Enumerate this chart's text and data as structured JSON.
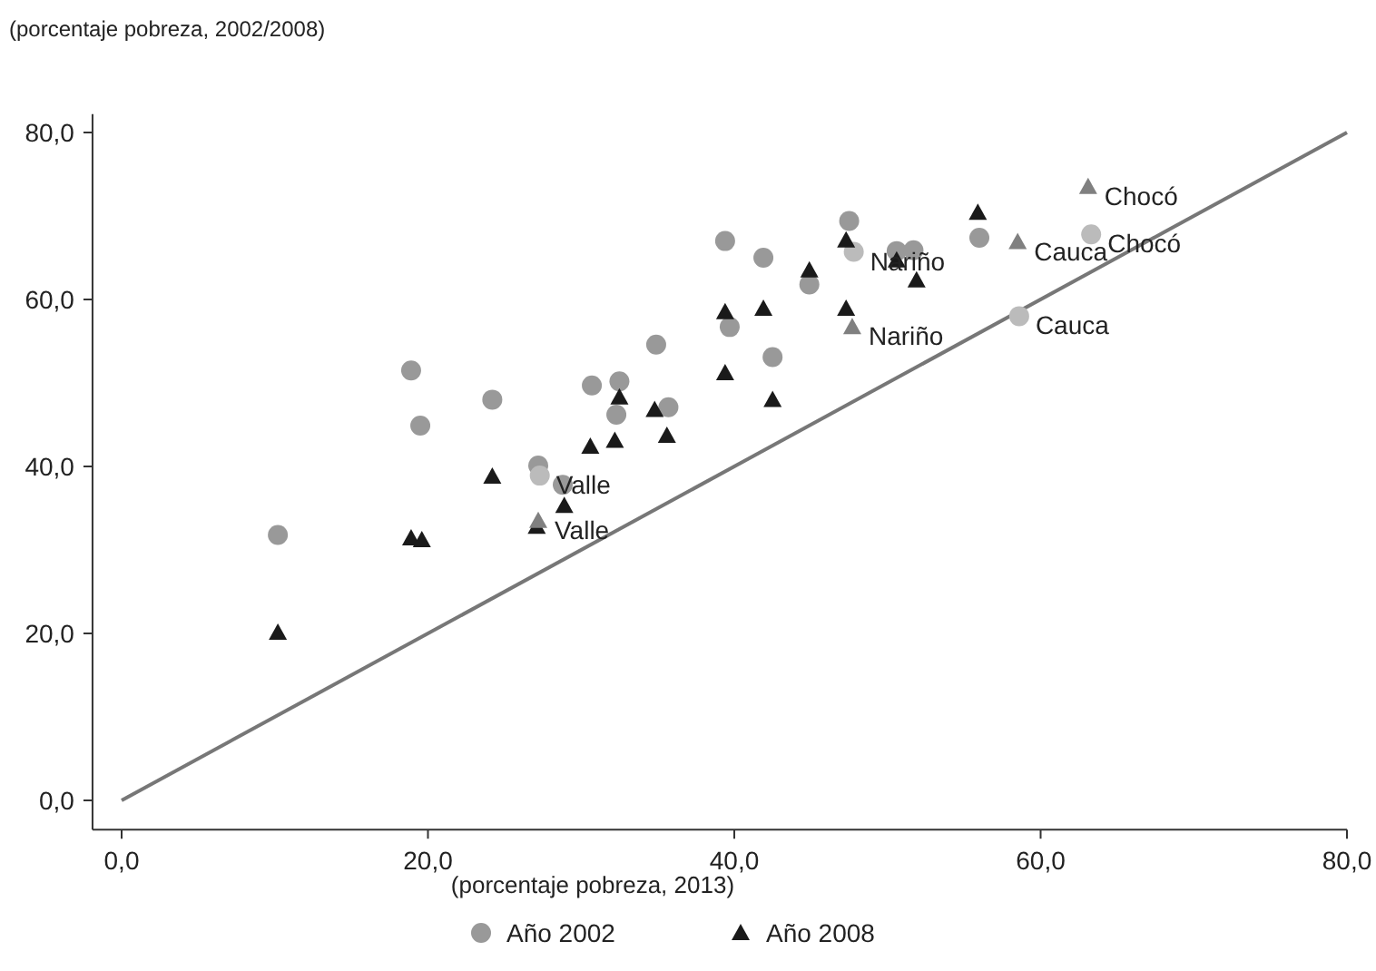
{
  "chart_data": {
    "type": "scatter",
    "ylabel": "(porcentaje pobreza, 2002/2008)",
    "xlabel": "(porcentaje pobreza, 2013)",
    "xlim": [
      -1.9,
      80
    ],
    "ylim": [
      -3.5,
      82.2
    ],
    "xticks": [
      {
        "value": 0,
        "label": "0,0"
      },
      {
        "value": 20,
        "label": "20,0"
      },
      {
        "value": 40,
        "label": "40,0"
      },
      {
        "value": 60,
        "label": "60,0"
      },
      {
        "value": 80,
        "label": "80,0"
      }
    ],
    "yticks": [
      {
        "value": 0,
        "label": "0,0"
      },
      {
        "value": 20,
        "label": "20,0"
      },
      {
        "value": 40,
        "label": "40,0"
      },
      {
        "value": 60,
        "label": "60,0"
      },
      {
        "value": 80,
        "label": "80,0"
      }
    ],
    "grid": false,
    "legend": "bottom",
    "series": [
      {
        "type": "line",
        "color": "#777777",
        "x": [
          0,
          80
        ],
        "values": [
          0,
          80
        ],
        "marker": "none",
        "line_style": "solid"
      },
      {
        "name": "Año 2002",
        "marker": "circle",
        "color": "#999999",
        "x": [
          10.2,
          18.9,
          19.5,
          24.2,
          27.2,
          27.3,
          28.8,
          30.7,
          32.5,
          32.3,
          34.9,
          35.7,
          39.4,
          39.7,
          41.9,
          42.5,
          44.9,
          47.5,
          47.8,
          50.6,
          51.7,
          56.0,
          58.6,
          63.3
        ],
        "values": [
          31.8,
          51.5,
          44.9,
          48.0,
          40.1,
          38.9,
          37.8,
          49.7,
          50.2,
          46.2,
          54.6,
          47.1,
          67.0,
          56.7,
          65.0,
          53.1,
          61.8,
          69.4,
          65.7,
          65.8,
          65.9,
          67.4,
          58.0,
          67.8
        ],
        "colors": [
          "#999999",
          "#999999",
          "#999999",
          "#999999",
          "#999999",
          "#bbbbbb",
          "#999999",
          "#999999",
          "#999999",
          "#999999",
          "#999999",
          "#999999",
          "#999999",
          "#999999",
          "#999999",
          "#999999",
          "#999999",
          "#999999",
          "#bbbbbb",
          "#999999",
          "#999999",
          "#999999",
          "#bbbbbb",
          "#bbbbbb"
        ]
      },
      {
        "name": "Año 2008",
        "marker": "triangle",
        "color": "#1a1a1a",
        "x": [
          10.2,
          18.9,
          19.6,
          24.2,
          27.1,
          27.2,
          28.9,
          30.6,
          32.2,
          32.5,
          34.8,
          35.6,
          39.4,
          39.4,
          41.9,
          42.5,
          44.9,
          47.3,
          47.3,
          47.7,
          50.6,
          51.9,
          55.9,
          58.5,
          63.1
        ],
        "values": [
          20.1,
          31.4,
          31.2,
          38.8,
          32.8,
          33.5,
          35.3,
          42.4,
          43.1,
          48.3,
          46.8,
          43.7,
          51.2,
          58.5,
          58.9,
          48.0,
          63.5,
          67.1,
          58.9,
          56.7,
          64.7,
          62.3,
          70.4,
          66.9,
          73.5
        ],
        "colors": [
          "#1a1a1a",
          "#1a1a1a",
          "#1a1a1a",
          "#1a1a1a",
          "#1a1a1a",
          "#808080",
          "#1a1a1a",
          "#1a1a1a",
          "#1a1a1a",
          "#1a1a1a",
          "#1a1a1a",
          "#1a1a1a",
          "#1a1a1a",
          "#1a1a1a",
          "#1a1a1a",
          "#1a1a1a",
          "#1a1a1a",
          "#1a1a1a",
          "#1a1a1a",
          "#808080",
          "#1a1a1a",
          "#1a1a1a",
          "#1a1a1a",
          "#808080",
          "#808080"
        ]
      }
    ],
    "annotations": [
      {
        "text": "Valle",
        "x": 27.3,
        "y": 38.9
      },
      {
        "text": "Valle",
        "x": 27.2,
        "y": 33.5
      },
      {
        "text": "Nariño",
        "x": 47.8,
        "y": 65.7
      },
      {
        "text": "Nariño",
        "x": 47.7,
        "y": 56.7
      },
      {
        "text": "Cauca",
        "x": 58.5,
        "y": 66.9
      },
      {
        "text": "Cauca",
        "x": 58.6,
        "y": 58.0
      },
      {
        "text": "Chocó",
        "x": 63.1,
        "y": 73.5
      },
      {
        "text": "Chocó",
        "x": 63.3,
        "y": 67.8
      }
    ]
  }
}
